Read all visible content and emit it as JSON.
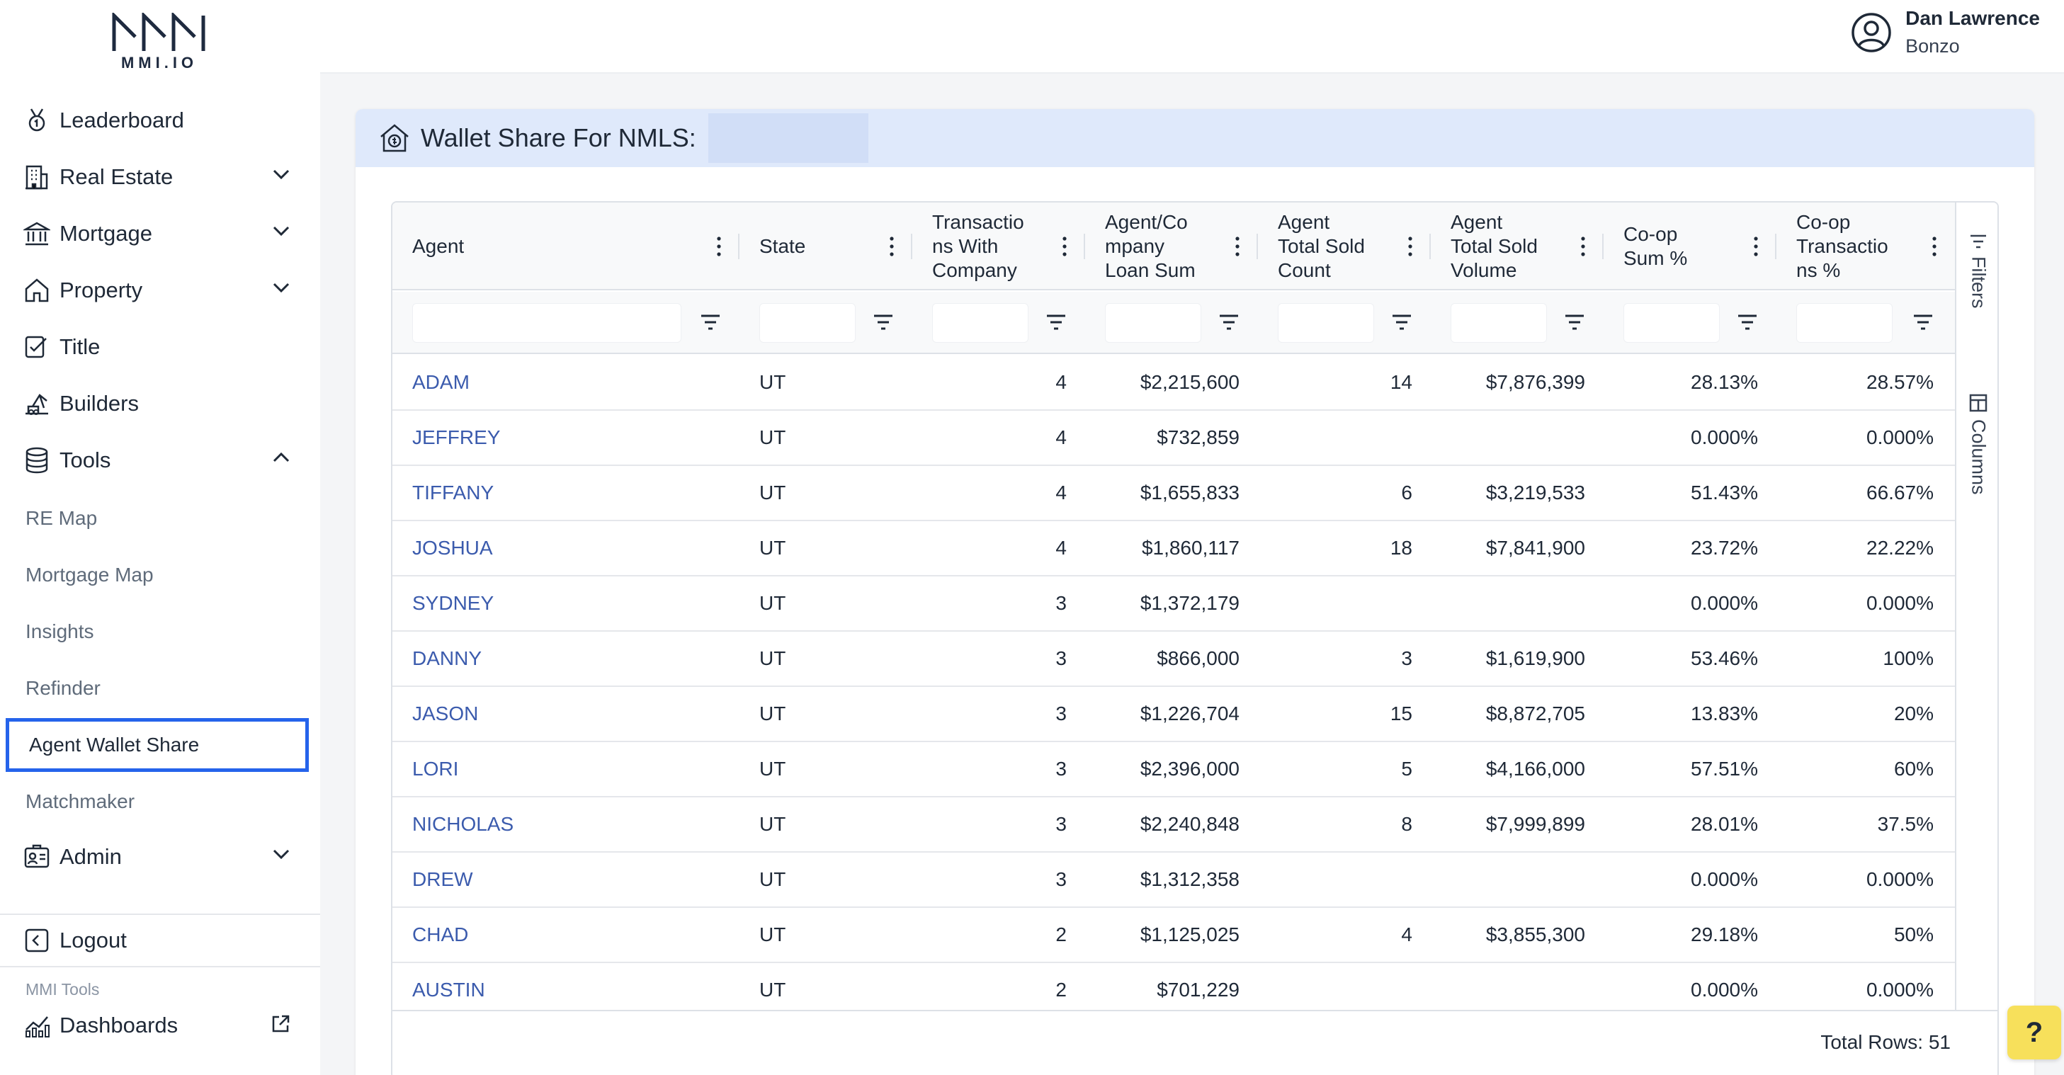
{
  "brand": {
    "logo_text": "MMI.IO"
  },
  "user": {
    "name": "Dan Lawrence",
    "org": "Bonzo"
  },
  "sidebar": {
    "items": [
      {
        "label": "Leaderboard",
        "icon": "award-icon"
      },
      {
        "label": "Real Estate",
        "icon": "building-icon",
        "expandable": true
      },
      {
        "label": "Mortgage",
        "icon": "bank-icon",
        "expandable": true
      },
      {
        "label": "Property",
        "icon": "house-icon",
        "expandable": true
      },
      {
        "label": "Title",
        "icon": "title-icon"
      },
      {
        "label": "Builders",
        "icon": "crane-icon"
      },
      {
        "label": "Tools",
        "icon": "database-icon",
        "expanded": true
      }
    ],
    "tools_sub": [
      "RE Map",
      "Mortgage Map",
      "Insights",
      "Refinder",
      "Agent Wallet Share",
      "Matchmaker"
    ],
    "active_sub": "Agent Wallet Share",
    "admin": "Admin",
    "logout": "Logout",
    "mmi_tools_label": "MMI Tools",
    "dashboards": "Dashboards"
  },
  "card": {
    "title": "Wallet Share For NMLS:"
  },
  "grid": {
    "columns": [
      "Agent",
      "State",
      "Transactio ns With Company",
      "Agent/Co mpany Loan Sum",
      "Agent Total Sold Count",
      "Agent Total Sold Volume",
      "Co-op Sum %",
      "Co-op Transactio ns %"
    ],
    "header_lines": [
      [
        "Agent"
      ],
      [
        "State"
      ],
      [
        "Transactio",
        "ns With",
        "Company"
      ],
      [
        "Agent/Co",
        "mpany",
        "Loan Sum"
      ],
      [
        "Agent",
        "Total Sold",
        "Count"
      ],
      [
        "Agent",
        "Total Sold",
        "Volume"
      ],
      [
        "Co-op",
        "Sum %"
      ],
      [
        "Co-op",
        "Transactio",
        "ns %"
      ]
    ],
    "rows": [
      [
        "ADAM",
        "UT",
        "4",
        "$2,215,600",
        "14",
        "$7,876,399",
        "28.13%",
        "28.57%"
      ],
      [
        "JEFFREY",
        "UT",
        "4",
        "$732,859",
        "",
        "",
        "0.000%",
        "0.000%"
      ],
      [
        "TIFFANY",
        "UT",
        "4",
        "$1,655,833",
        "6",
        "$3,219,533",
        "51.43%",
        "66.67%"
      ],
      [
        "JOSHUA",
        "UT",
        "4",
        "$1,860,117",
        "18",
        "$7,841,900",
        "23.72%",
        "22.22%"
      ],
      [
        "SYDNEY",
        "UT",
        "3",
        "$1,372,179",
        "",
        "",
        "0.000%",
        "0.000%"
      ],
      [
        "DANNY",
        "UT",
        "3",
        "$866,000",
        "3",
        "$1,619,900",
        "53.46%",
        "100%"
      ],
      [
        "JASON",
        "UT",
        "3",
        "$1,226,704",
        "15",
        "$8,872,705",
        "13.83%",
        "20%"
      ],
      [
        "LORI",
        "UT",
        "3",
        "$2,396,000",
        "5",
        "$4,166,000",
        "57.51%",
        "60%"
      ],
      [
        "NICHOLAS",
        "UT",
        "3",
        "$2,240,848",
        "8",
        "$7,999,899",
        "28.01%",
        "37.5%"
      ],
      [
        "DREW",
        "UT",
        "3",
        "$1,312,358",
        "",
        "",
        "0.000%",
        "0.000%"
      ],
      [
        "CHAD",
        "UT",
        "2",
        "$1,125,025",
        "4",
        "$3,855,300",
        "29.18%",
        "50%"
      ],
      [
        "AUSTIN",
        "UT",
        "2",
        "$701,229",
        "",
        "",
        "0.000%",
        "0.000%"
      ]
    ],
    "side_buttons": [
      "Filters",
      "Columns"
    ],
    "total_rows": "Total Rows: 51"
  },
  "help": {
    "label": "?"
  },
  "colors": {
    "accent": "#2563eb",
    "link": "#3b5bad",
    "header_bg": "#dfe9fb",
    "help_bg": "#f7e05b"
  }
}
